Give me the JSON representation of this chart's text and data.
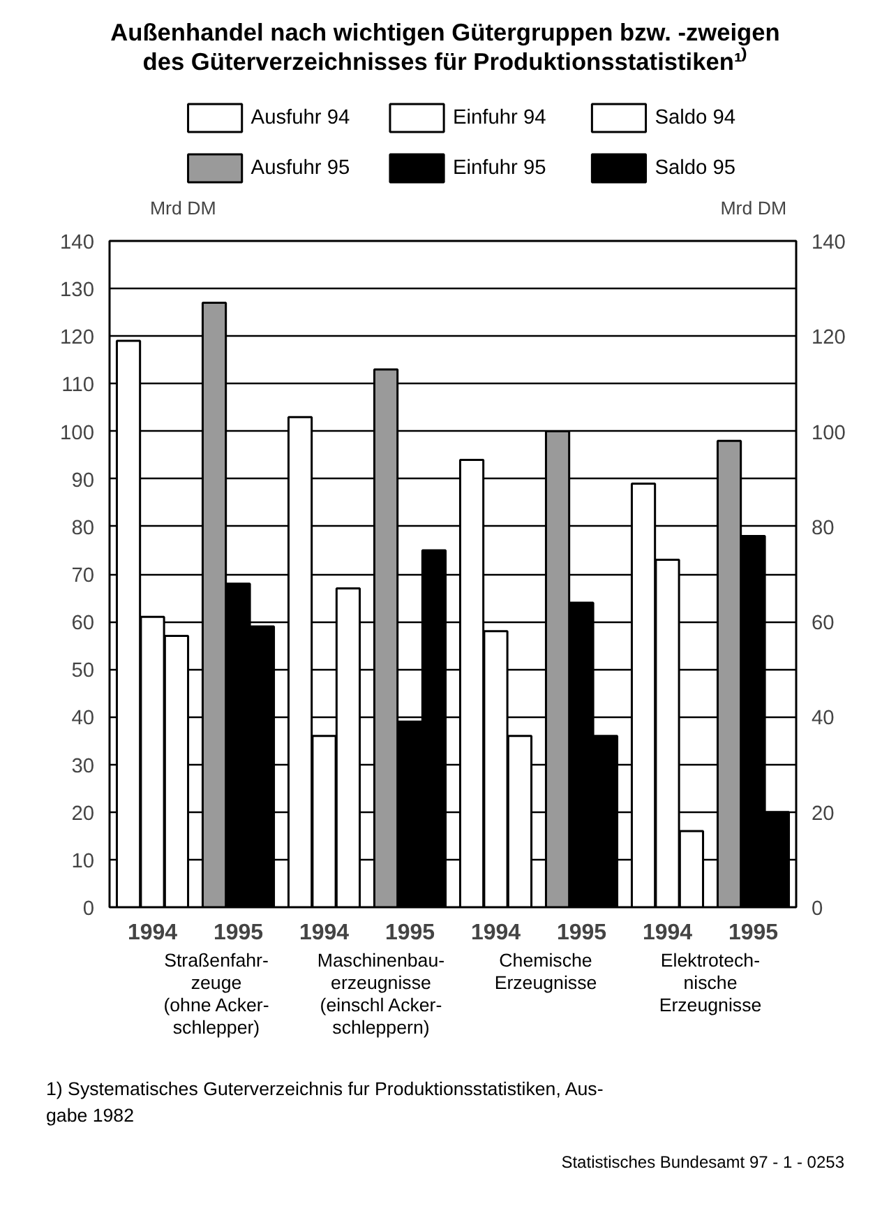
{
  "chart_data": {
    "type": "bar",
    "title": "Außenhandel nach wichtigen Gütergruppen bzw. -zweigen\ndes Güterverzeichnisses für Produktionsstatistiken¹⁾",
    "ylabel": "Mrd  DM",
    "y2label": "Mrd  DM",
    "categories": [
      "1994",
      "1995",
      "1994",
      "1995",
      "1994",
      "1995",
      "1994",
      "1995"
    ],
    "series": [
      {
        "name": "Ausfuhr 94",
        "color": "#ffffff",
        "values": [
          119,
          null,
          103,
          null,
          94,
          null,
          89,
          null
        ]
      },
      {
        "name": "Einfuhr 94",
        "color": "#ffffff",
        "values": [
          61,
          null,
          36,
          null,
          58,
          null,
          73,
          null
        ]
      },
      {
        "name": "Saldo 94",
        "color": "#ffffff",
        "values": [
          57,
          null,
          67,
          null,
          36,
          null,
          16,
          null
        ]
      },
      {
        "name": "Ausfuhr 95",
        "color": "#9a9a9a",
        "values": [
          null,
          127,
          null,
          113,
          null,
          100,
          null,
          98
        ]
      },
      {
        "name": "Einfuhr 95",
        "color": "#000000",
        "values": [
          null,
          68,
          null,
          39,
          null,
          64,
          null,
          78
        ]
      },
      {
        "name": "Saldo 95",
        "color": "#000000",
        "values": [
          null,
          59,
          null,
          75,
          null,
          36,
          null,
          20
        ]
      }
    ],
    "ylim": [
      0,
      140
    ],
    "yticks": [
      0,
      10,
      20,
      30,
      40,
      50,
      60,
      70,
      80,
      90,
      100,
      110,
      120,
      130,
      140
    ],
    "y2lim": [
      0,
      140
    ],
    "y2ticks": [
      0,
      20,
      40,
      60,
      80,
      100,
      120,
      140
    ],
    "grid": "y",
    "legend": "top",
    "annotations": [
      "Straßenfahr-\nzeuge\n(ohne Acker-\nschlepper)",
      "Maschinenbau-\nerzeugnisse\n(einschl  Acker-\nschleppern)",
      "Chemische\nErzeugnisse",
      "Elektrotech-\nnische\nErzeugnisse",
      "1) Systematisches Guterverzeichnis fur Produktionsstatistiken, Aus-\ngabe 1982",
      "Statistisches Bundesamt 97 - 1 - 0253"
    ]
  }
}
